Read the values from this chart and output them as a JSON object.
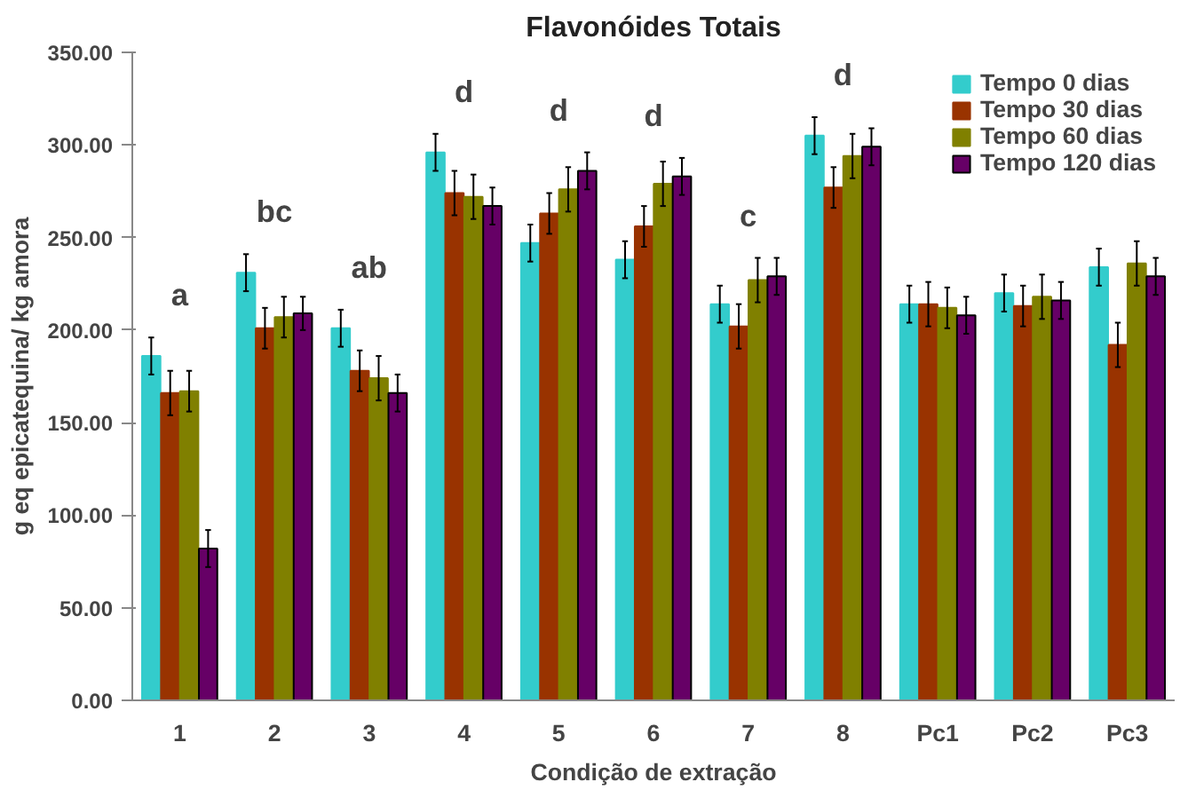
{
  "chart_data": {
    "type": "bar",
    "title": "Flavonóides Totais",
    "xlabel": "Condição de extração",
    "ylabel": "g eq epicatequina/ kg amora",
    "categories": [
      "1",
      "2",
      "3",
      "4",
      "5",
      "6",
      "7",
      "8",
      "Pc1",
      "Pc2",
      "Pc3"
    ],
    "series": [
      {
        "name": "Tempo 0 dias",
        "color": "#33cccc",
        "values": [
          186,
          231,
          201,
          296,
          247,
          238,
          214,
          305,
          214,
          220,
          234
        ],
        "errors": [
          10,
          10,
          10,
          10,
          10,
          10,
          10,
          10,
          10,
          10,
          10
        ]
      },
      {
        "name": "Tempo 30 dias",
        "color": "#993300",
        "values": [
          166,
          201,
          178,
          274,
          263,
          256,
          202,
          277,
          214,
          213,
          192
        ],
        "errors": [
          12,
          11,
          11,
          12,
          11,
          11,
          12,
          11,
          12,
          11,
          12
        ]
      },
      {
        "name": "Tempo 60 dias",
        "color": "#808000",
        "values": [
          167,
          207,
          174,
          272,
          276,
          279,
          227,
          294,
          212,
          218,
          236
        ],
        "errors": [
          11,
          11,
          12,
          12,
          12,
          12,
          12,
          12,
          11,
          12,
          12
        ]
      },
      {
        "name": "Tempo 120 dias",
        "color": "#660066",
        "values": [
          82,
          209,
          166,
          267,
          286,
          283,
          229,
          299,
          208,
          216,
          229
        ],
        "errors": [
          10,
          9,
          10,
          10,
          10,
          10,
          10,
          10,
          10,
          10,
          10
        ]
      }
    ],
    "ylim": [
      0,
      350
    ],
    "yticks": [
      {
        "value": 0,
        "label": "0.00"
      },
      {
        "value": 50,
        "label": "50.00"
      },
      {
        "value": 100,
        "label": "100.00"
      },
      {
        "value": 150,
        "label": "150.00"
      },
      {
        "value": 200,
        "label": "200.00"
      },
      {
        "value": 250,
        "label": "250.00"
      },
      {
        "value": 300,
        "label": "300.00"
      },
      {
        "value": 350,
        "label": "350.00"
      }
    ],
    "annotations": [
      "a",
      "bc",
      "ab",
      "d",
      "d",
      "d",
      "c",
      "d"
    ],
    "legend": "top right",
    "grid": false
  }
}
